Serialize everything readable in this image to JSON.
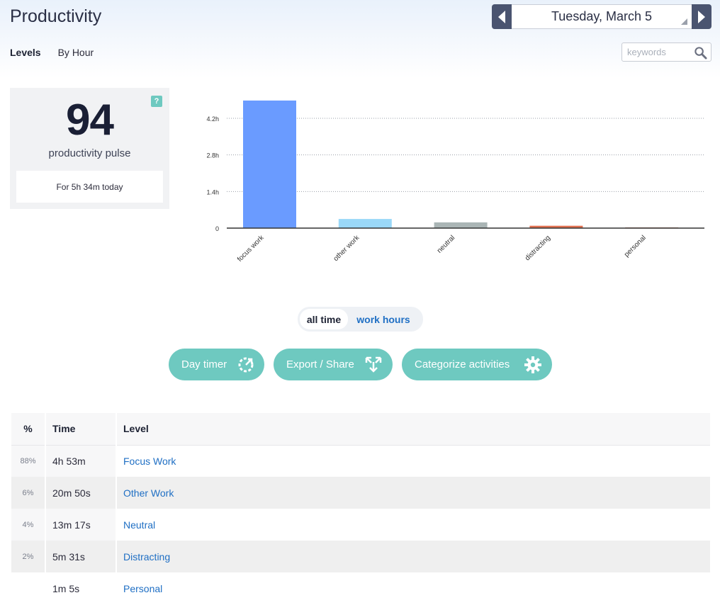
{
  "header": {
    "title": "Productivity",
    "date": "Tuesday, March 5"
  },
  "tabs": [
    {
      "label": "Levels",
      "active": true
    },
    {
      "label": "By Hour",
      "active": false
    }
  ],
  "search": {
    "placeholder": "keywords",
    "value": ""
  },
  "pulse": {
    "help": "?",
    "value": "94",
    "label": "productivity pulse",
    "subtext": "For 5h 34m today"
  },
  "chart_data": {
    "type": "bar",
    "categories": [
      "focus work",
      "other work",
      "neutral",
      "distracting",
      "personal"
    ],
    "values": [
      4.88,
      0.35,
      0.22,
      0.09,
      0.02
    ],
    "colors": [
      "#6a9bff",
      "#9ad8f8",
      "#aab5b5",
      "#e07050",
      "#c08070"
    ],
    "ytick_labels": [
      "0",
      "1.4h",
      "2.8h",
      "4.2h"
    ],
    "yticks": [
      0,
      1.4,
      2.8,
      4.2
    ],
    "ylim": [
      0,
      5.0
    ],
    "grid": true
  },
  "toggle": {
    "active": "all time",
    "inactive": "work hours"
  },
  "actions": {
    "day_timer": "Day timer",
    "export_share": "Export / Share",
    "categorize": "Categorize activities"
  },
  "table": {
    "headers": {
      "pct": "%",
      "time": "Time",
      "level": "Level"
    },
    "rows": [
      {
        "pct": "88%",
        "time": "4h 53m",
        "level": "Focus Work"
      },
      {
        "pct": "6%",
        "time": "20m 50s",
        "level": "Other Work"
      },
      {
        "pct": "4%",
        "time": "13m 17s",
        "level": "Neutral"
      },
      {
        "pct": "2%",
        "time": "5m 31s",
        "level": "Distracting"
      },
      {
        "pct": "",
        "time": "1m 5s",
        "level": "Personal"
      }
    ]
  },
  "colors": {
    "accent": "#6ec9c0",
    "link": "#1f6fc4",
    "nav": "#4a5470"
  }
}
